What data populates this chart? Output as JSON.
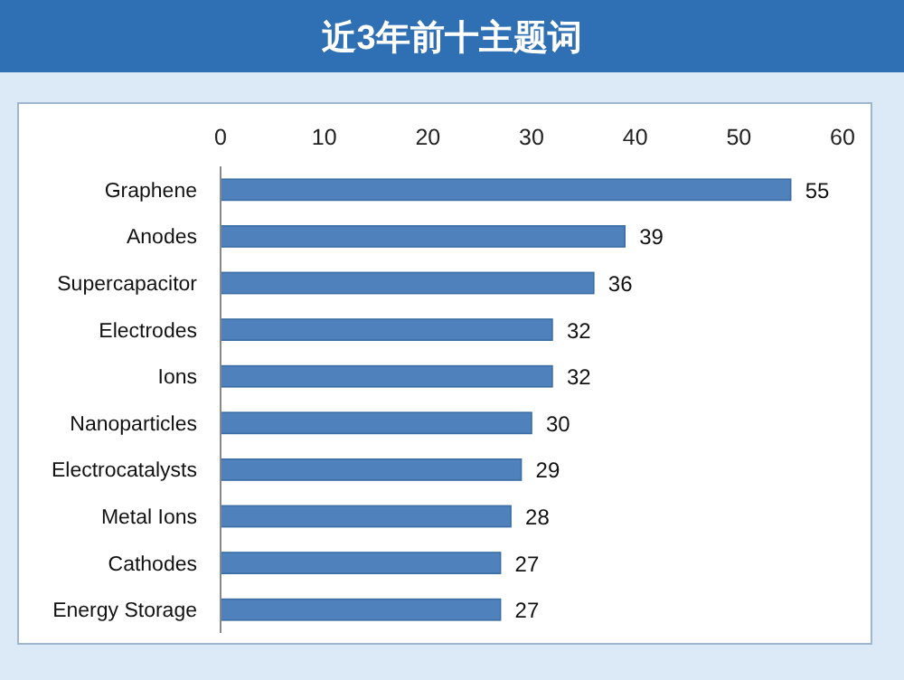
{
  "chart_data": {
    "type": "bar",
    "orientation": "horizontal",
    "title": "近3年前十主题词",
    "categories": [
      "Graphene",
      "Anodes",
      "Supercapacitor",
      "Electrodes",
      "Ions",
      "Nanoparticles",
      "Electrocatalysts",
      "Metal Ions",
      "Cathodes",
      "Energy Storage"
    ],
    "values": [
      55,
      39,
      36,
      32,
      32,
      30,
      29,
      28,
      27,
      27
    ],
    "color": "#4f81bd",
    "xlim": [
      0,
      60
    ],
    "xticks": [
      0,
      10,
      20,
      30,
      40,
      50,
      60
    ],
    "data_labels": true
  }
}
